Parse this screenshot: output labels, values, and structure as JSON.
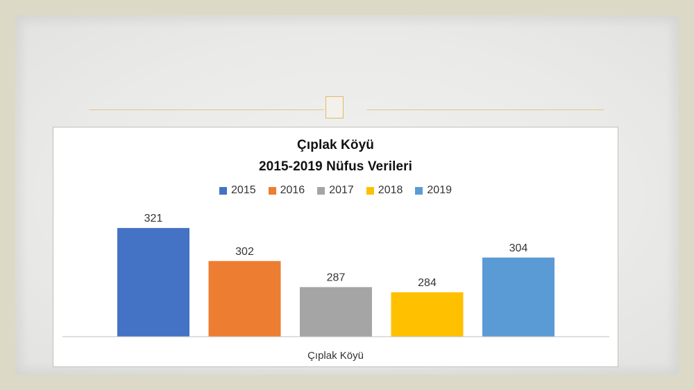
{
  "chart_data": {
    "type": "bar",
    "title": "Çıplak Köyü",
    "subtitle": "2015-2019 Nüfus Verileri",
    "categories": [
      "Çıplak Köyü"
    ],
    "series": [
      {
        "name": "2015",
        "values": [
          321
        ],
        "color": "#4472c4"
      },
      {
        "name": "2016",
        "values": [
          302
        ],
        "color": "#ed7d31"
      },
      {
        "name": "2017",
        "values": [
          287
        ],
        "color": "#a5a5a5"
      },
      {
        "name": "2018",
        "values": [
          284
        ],
        "color": "#ffc000"
      },
      {
        "name": "2019",
        "values": [
          304
        ],
        "color": "#5b9bd5"
      }
    ],
    "ylim": [
      250,
      330
    ],
    "grid": false,
    "legend_position": "top",
    "data_labels": true
  }
}
